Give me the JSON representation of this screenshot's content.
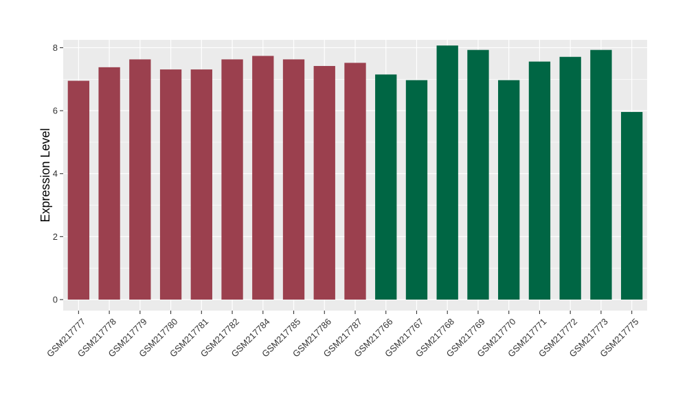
{
  "chart_data": {
    "type": "bar",
    "ylabel": "Expression Level",
    "xlabel": "",
    "ylim": [
      -0.35,
      8.25
    ],
    "yticks": [
      0,
      2,
      4,
      6,
      8
    ],
    "grid": true,
    "legend": "none",
    "colors": {
      "panel": "#ebebeb",
      "grid": "#ffffff",
      "group_a": "#9b404e",
      "group_b": "#006644"
    },
    "categories": [
      "GSM217777",
      "GSM217778",
      "GSM217779",
      "GSM217780",
      "GSM217781",
      "GSM217782",
      "GSM217784",
      "GSM217785",
      "GSM217786",
      "GSM217787",
      "GSM217766",
      "GSM217767",
      "GSM217768",
      "GSM217769",
      "GSM217770",
      "GSM217771",
      "GSM217772",
      "GSM217773",
      "GSM217775"
    ],
    "values": [
      6.95,
      7.38,
      7.63,
      7.31,
      7.31,
      7.63,
      7.74,
      7.63,
      7.42,
      7.52,
      7.15,
      6.97,
      8.07,
      7.93,
      6.97,
      7.56,
      7.71,
      7.93,
      5.96
    ],
    "groups": [
      "a",
      "a",
      "a",
      "a",
      "a",
      "a",
      "a",
      "a",
      "a",
      "a",
      "b",
      "b",
      "b",
      "b",
      "b",
      "b",
      "b",
      "b",
      "b"
    ]
  }
}
